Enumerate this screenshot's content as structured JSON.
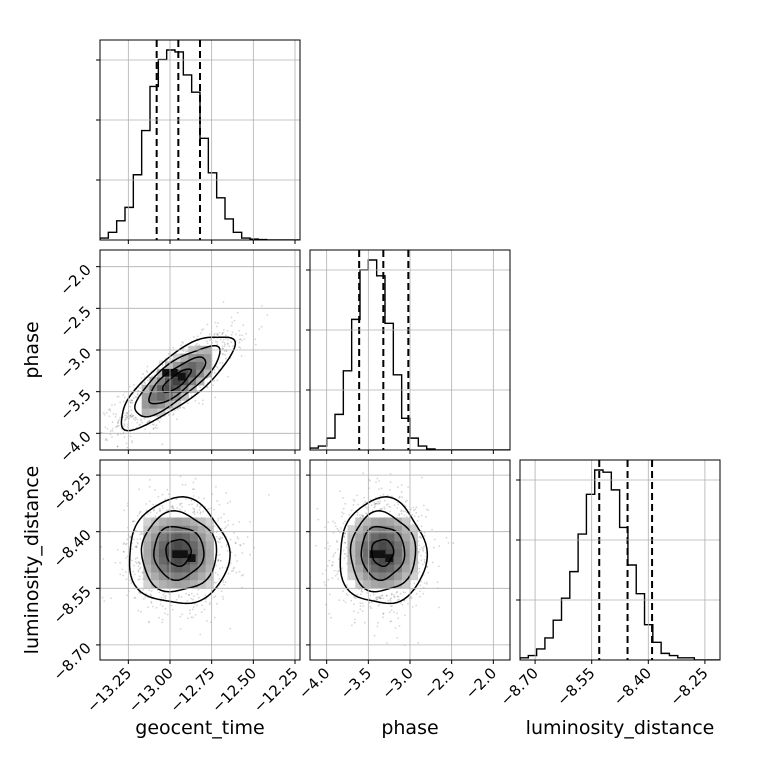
{
  "chart_data": {
    "type": "corner",
    "parameters": [
      "geocent_time",
      "phase",
      "luminosity_distance"
    ],
    "axes": {
      "geocent_time": {
        "label": "geocent_time",
        "range": [
          -13.42,
          -12.22
        ],
        "ticks": [
          -13.25,
          -13.0,
          -12.75,
          -12.5,
          -12.25
        ],
        "tick_labels": [
          "−13.25",
          "−13.00",
          "−12.75",
          "−12.50",
          "−12.25"
        ]
      },
      "phase": {
        "label": "phase",
        "range": [
          -4.2,
          -1.8
        ],
        "ticks": [
          -4.0,
          -3.5,
          -3.0,
          -2.5,
          -2.0
        ],
        "tick_labels": [
          "−4.0",
          "−3.5",
          "−3.0",
          "−2.5",
          "−2.0"
        ]
      },
      "luminosity_distance": {
        "label": "luminosity_distance",
        "range": [
          -8.74,
          -8.21
        ],
        "ticks": [
          -8.7,
          -8.55,
          -8.4,
          -8.25
        ],
        "tick_labels": [
          "−8.70",
          "−8.55",
          "−8.40",
          "−8.25"
        ]
      }
    },
    "histograms": {
      "geocent_time": {
        "bin_start": -13.42,
        "bin_width": 0.05,
        "counts": [
          1,
          4,
          10,
          17,
          34,
          57,
          80,
          94,
          99,
          98,
          86,
          77,
          53,
          35,
          22,
          11,
          4,
          1,
          0.5,
          0.2,
          0,
          0,
          0,
          0
        ],
        "quantiles": [
          -13.08,
          -12.95,
          -12.82
        ]
      },
      "phase": {
        "bin_start": -4.2,
        "bin_width": 0.1,
        "counts": [
          1,
          2,
          6,
          18,
          40,
          66,
          91,
          96,
          88,
          64,
          38,
          16,
          6,
          2,
          0.5,
          0,
          0,
          0,
          0,
          0,
          0,
          0,
          0,
          0
        ],
        "quantiles": [
          -3.61,
          -3.32,
          -3.02
        ]
      },
      "luminosity_distance": {
        "bin_start": -8.74,
        "bin_width": 0.022,
        "counts": [
          1,
          2,
          5,
          10,
          18,
          28,
          40,
          57,
          75,
          86,
          85,
          77,
          60,
          43,
          30,
          16,
          8,
          3,
          2,
          1,
          1,
          0,
          0,
          0
        ],
        "quantiles": [
          -8.53,
          -8.455,
          -8.39
        ]
      }
    },
    "joint": [
      {
        "x": "geocent_time",
        "y": "phase",
        "center": [
          -12.96,
          -3.37
        ],
        "sigma": [
          0.17,
          0.28
        ],
        "correlation": 0.8,
        "density_peak": [
          -12.93,
          -3.32
        ]
      },
      {
        "x": "geocent_time",
        "y": "luminosity_distance",
        "center": [
          -12.95,
          -8.455
        ],
        "sigma": [
          0.15,
          0.07
        ],
        "correlation": 0.0,
        "density_peak": [
          -12.87,
          -8.47
        ]
      },
      {
        "x": "phase",
        "y": "luminosity_distance",
        "center": [
          -3.33,
          -8.455
        ],
        "sigma": [
          0.26,
          0.07
        ],
        "correlation": 0.0,
        "density_peak": [
          -3.25,
          -8.47
        ]
      }
    ],
    "contour_levels": [
      0.5,
      1.0,
      1.5,
      2.0
    ],
    "grid": true,
    "colors": {
      "line": "#000000",
      "grid": "#b0b0b0",
      "points": "#000000"
    }
  }
}
